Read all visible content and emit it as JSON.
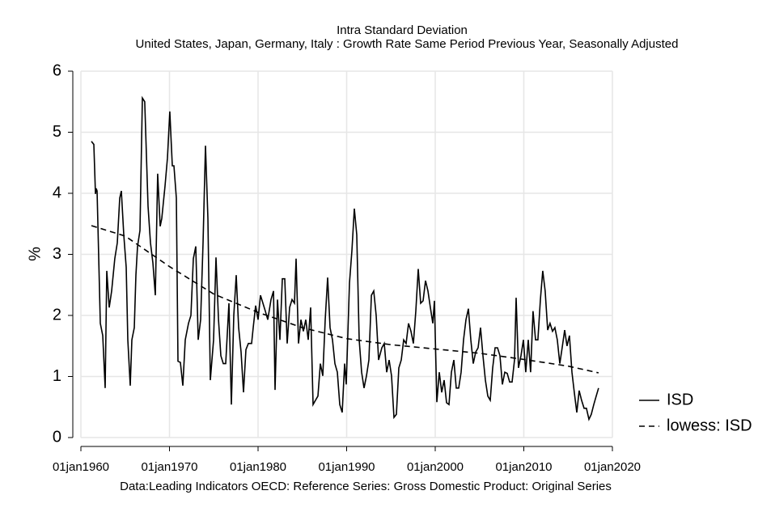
{
  "chart_data": {
    "type": "line",
    "title": "Intra Standard Deviation",
    "subtitle": "United States, Japan, Germany, Italy : Growth Rate Same Period Previous Year, Seasonally Adjusted",
    "note": "Data:Leading Indicators OECD: Reference Series: Gross Domestic Product: Original Series",
    "y_label": "%",
    "xlim": [
      1960,
      2020
    ],
    "xticks": [
      {
        "value": 1960,
        "label": "01jan1960"
      },
      {
        "value": 1970,
        "label": "01jan1970"
      },
      {
        "value": 1980,
        "label": "01jan1980"
      },
      {
        "value": 1990,
        "label": "01jan1990"
      },
      {
        "value": 2000,
        "label": "01jan2000"
      },
      {
        "value": 2010,
        "label": "01jan2010"
      },
      {
        "value": 2020,
        "label": "01jan2020"
      }
    ],
    "ylim": [
      0,
      6
    ],
    "yticks": [
      0,
      1,
      2,
      3,
      4,
      5,
      6
    ],
    "grid": true,
    "legend": "right",
    "series": [
      {
        "name": "ISD",
        "color": "#000000",
        "line_style": "solid",
        "x": [
          1961.19,
          1961.46,
          1961.64,
          1961.73,
          1961.83,
          1962.19,
          1962.47,
          1962.74,
          1962.92,
          1963.2,
          1963.47,
          1963.83,
          1964.11,
          1964.38,
          1964.57,
          1964.84,
          1965.11,
          1965.3,
          1965.57,
          1965.75,
          1966.03,
          1966.21,
          1966.39,
          1966.67,
          1966.94,
          1967.21,
          1967.58,
          1967.85,
          1968.13,
          1968.4,
          1968.67,
          1968.95,
          1969.13,
          1969.5,
          1969.77,
          1970.04,
          1970.32,
          1970.5,
          1970.78,
          1970.96,
          1971.23,
          1971.51,
          1971.78,
          1972.15,
          1972.42,
          1972.69,
          1972.97,
          1973.24,
          1973.52,
          1973.79,
          1974.06,
          1974.34,
          1974.61,
          1974.98,
          1975.25,
          1975.53,
          1975.8,
          1976.07,
          1976.35,
          1976.71,
          1976.99,
          1977.26,
          1977.53,
          1977.81,
          1978.08,
          1978.36,
          1978.63,
          1978.9,
          1979.27,
          1979.45,
          1979.73,
          1980.0,
          1980.27,
          1980.55,
          1980.82,
          1981.1,
          1981.46,
          1981.74,
          1981.92,
          1982.19,
          1982.47,
          1982.74,
          1983.01,
          1983.29,
          1983.56,
          1983.84,
          1984.11,
          1984.29,
          1984.57,
          1984.84,
          1985.11,
          1985.39,
          1985.66,
          1985.94,
          1986.21,
          1986.48,
          1986.76,
          1987.03,
          1987.31,
          1987.58,
          1987.85,
          1988.13,
          1988.4,
          1988.68,
          1988.95,
          1989.22,
          1989.5,
          1989.77,
          1989.95,
          1990.32,
          1990.59,
          1990.87,
          1991.14,
          1991.42,
          1991.69,
          1991.96,
          1992.24,
          1992.51,
          1992.79,
          1993.06,
          1993.33,
          1993.61,
          1993.97,
          1994.25,
          1994.52,
          1994.79,
          1995.07,
          1995.34,
          1995.62,
          1995.89,
          1996.16,
          1996.44,
          1996.71,
          1996.99,
          1997.26,
          1997.53,
          1997.81,
          1998.08,
          1998.36,
          1998.63,
          1998.9,
          1999.18,
          1999.45,
          1999.73,
          1999.91,
          2000.18,
          2000.46,
          2000.73,
          2001.0,
          2001.28,
          2001.55,
          2001.83,
          2002.1,
          2002.37,
          2002.65,
          2002.92,
          2003.2,
          2003.47,
          2003.74,
          2004.02,
          2004.29,
          2004.57,
          2004.84,
          2005.11,
          2005.39,
          2005.66,
          2005.94,
          2006.21,
          2006.48,
          2006.76,
          2007.03,
          2007.31,
          2007.58,
          2007.85,
          2008.13,
          2008.4,
          2008.68,
          2008.95,
          2009.13,
          2009.4,
          2009.68,
          2009.95,
          2010.22,
          2010.5,
          2010.77,
          2011.04,
          2011.32,
          2011.59,
          2011.87,
          2012.14,
          2012.41,
          2012.69,
          2012.96,
          2013.24,
          2013.51,
          2013.78,
          2014.06,
          2014.33,
          2014.61,
          2014.88,
          2015.15,
          2015.43,
          2015.7,
          2015.98,
          2016.25,
          2016.52,
          2016.8,
          2017.07,
          2017.35,
          2017.62,
          2017.9,
          2018.17,
          2018.44
        ],
        "values": [
          4.85,
          4.8,
          3.99,
          4.08,
          4.04,
          1.87,
          1.67,
          0.81,
          2.73,
          2.13,
          2.4,
          2.93,
          3.19,
          3.92,
          4.04,
          3.32,
          2.79,
          1.6,
          0.85,
          1.6,
          1.8,
          2.66,
          3.13,
          3.39,
          5.56,
          5.5,
          3.79,
          3.19,
          2.86,
          2.33,
          4.32,
          3.46,
          3.59,
          4.12,
          4.58,
          5.34,
          4.45,
          4.45,
          3.92,
          1.25,
          1.23,
          0.85,
          1.6,
          1.87,
          2.0,
          2.93,
          3.13,
          1.6,
          1.93,
          3.19,
          4.78,
          3.59,
          0.94,
          1.6,
          2.95,
          1.93,
          1.34,
          1.21,
          1.21,
          2.2,
          0.54,
          2.0,
          2.66,
          1.8,
          1.4,
          0.74,
          1.44,
          1.54,
          1.54,
          1.8,
          2.16,
          1.93,
          2.33,
          2.2,
          2.07,
          1.93,
          2.26,
          2.4,
          0.78,
          2.26,
          1.6,
          2.6,
          2.6,
          1.54,
          2.13,
          2.26,
          2.2,
          2.93,
          1.54,
          1.93,
          1.74,
          1.93,
          1.6,
          2.13,
          0.54,
          0.61,
          0.68,
          1.21,
          1.01,
          1.93,
          2.62,
          1.8,
          1.6,
          1.21,
          1.07,
          0.54,
          0.41,
          1.21,
          0.87,
          2.53,
          3.06,
          3.75,
          3.32,
          1.6,
          1.07,
          0.81,
          1.01,
          1.27,
          2.33,
          2.4,
          2.0,
          1.27,
          1.47,
          1.54,
          1.07,
          1.27,
          1.01,
          0.33,
          0.38,
          1.14,
          1.27,
          1.6,
          1.54,
          1.87,
          1.74,
          1.54,
          2.07,
          2.76,
          2.2,
          2.24,
          2.57,
          2.4,
          2.13,
          1.87,
          2.24,
          0.58,
          1.07,
          0.74,
          0.94,
          0.57,
          0.54,
          1.07,
          1.27,
          0.81,
          0.81,
          1.07,
          1.6,
          1.93,
          2.11,
          1.6,
          1.21,
          1.4,
          1.47,
          1.8,
          1.34,
          0.94,
          0.68,
          0.61,
          1.14,
          1.47,
          1.47,
          1.34,
          0.87,
          1.07,
          1.05,
          0.91,
          0.91,
          1.27,
          2.29,
          1.14,
          1.34,
          1.6,
          1.07,
          1.6,
          1.07,
          2.07,
          1.6,
          1.6,
          2.26,
          2.73,
          2.4,
          1.76,
          1.87,
          1.74,
          1.8,
          1.6,
          1.21,
          1.47,
          1.76,
          1.5,
          1.67,
          1.07,
          0.74,
          0.41,
          0.77,
          0.61,
          0.48,
          0.48,
          0.3,
          0.38,
          0.54,
          0.68,
          0.81
        ]
      },
      {
        "name": "lowess: ISD",
        "color": "#000000",
        "line_style": "dashed",
        "x": [
          1961.19,
          1965,
          1970,
          1975,
          1980,
          1985,
          1990,
          1995,
          2000,
          2005,
          2010,
          2015,
          2018.44
        ],
        "values": [
          3.47,
          3.3,
          2.8,
          2.35,
          2.05,
          1.8,
          1.62,
          1.52,
          1.45,
          1.38,
          1.28,
          1.17,
          1.06
        ]
      }
    ]
  }
}
